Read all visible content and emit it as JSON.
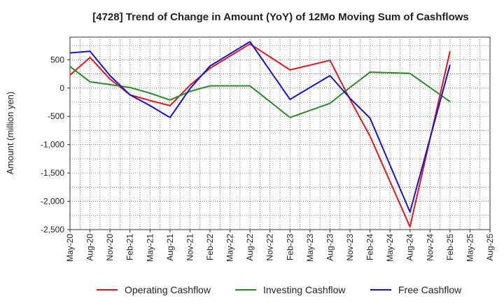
{
  "chart_data": {
    "type": "line",
    "title": "[4728]  Trend of Change in Amount (YoY) of 12Mo Moving Sum of Cashflows",
    "xlabel": "",
    "ylabel": "Amount (million yen)",
    "ylim": [
      -2500,
      900
    ],
    "yticks": [
      500,
      0,
      -500,
      -1000,
      -1500,
      -2000,
      -2500
    ],
    "ytick_labels": [
      "500",
      "0",
      "-500",
      "-1,000",
      "-1,500",
      "-2,000",
      "-2,500"
    ],
    "categories": [
      "May-20",
      "Aug-20",
      "Nov-20",
      "Feb-21",
      "May-21",
      "Aug-21",
      "Nov-21",
      "Feb-22",
      "May-22",
      "Aug-22",
      "Nov-22",
      "Feb-23",
      "May-23",
      "Aug-23",
      "Nov-23",
      "Feb-24",
      "May-24",
      "Aug-24",
      "Nov-24",
      "Feb-25",
      "May-25",
      "Aug-25"
    ],
    "grid": true,
    "legend_position": "bottom",
    "series": [
      {
        "name": "Operating Cashflow",
        "color": "#e8141b",
        "values": [
          230,
          540,
          160,
          -120,
          -220,
          -310,
          50,
          350,
          null,
          780,
          null,
          320,
          null,
          490,
          -200,
          -850,
          null,
          -2450,
          null,
          650,
          null,
          null
        ]
      },
      {
        "name": "Investing Cashflow",
        "color": "#2a8a2a",
        "values": [
          380,
          110,
          60,
          10,
          -90,
          -210,
          -60,
          40,
          null,
          40,
          null,
          -520,
          null,
          -270,
          10,
          280,
          null,
          260,
          null,
          -240,
          null,
          null
        ]
      },
      {
        "name": "Free Cashflow",
        "color": "#1414d0",
        "values": [
          620,
          650,
          220,
          -120,
          -310,
          -520,
          -10,
          390,
          null,
          820,
          null,
          -200,
          null,
          220,
          -180,
          -530,
          null,
          -2190,
          null,
          410,
          null,
          null
        ]
      }
    ]
  }
}
